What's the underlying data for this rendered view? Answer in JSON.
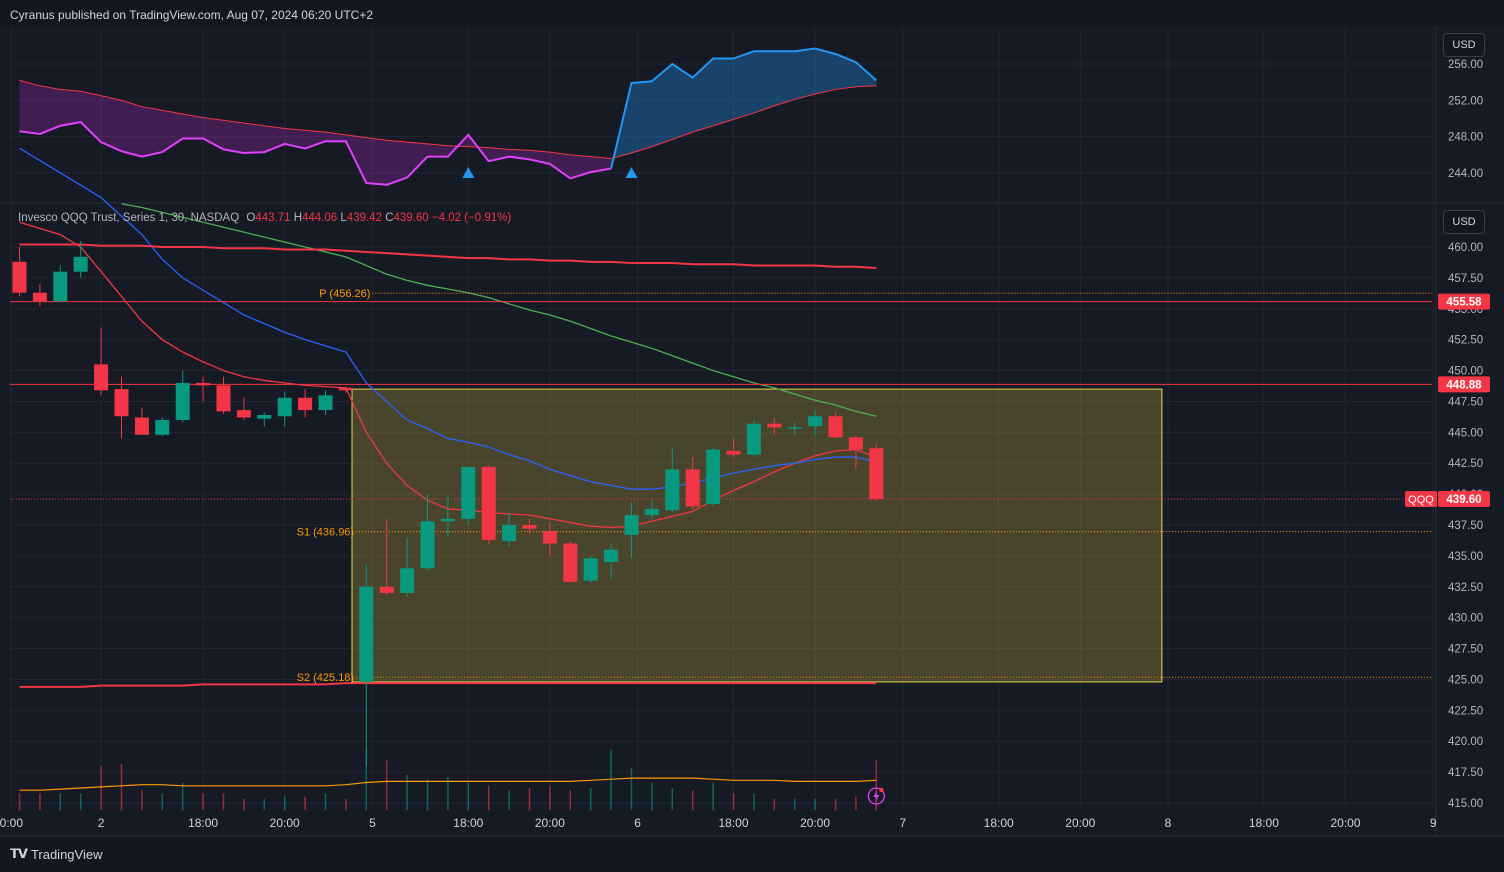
{
  "header": {
    "publisher_line": "Cyranus published on TradingView.com, Aug 07, 2024 06:20 UTC+2"
  },
  "footer": {
    "brand": "TradingView"
  },
  "colors": {
    "up": "#089981",
    "down": "#f23645",
    "bg": "#161a25",
    "grid": "#232632",
    "box_fill": "#b5a33a",
    "box_border": "#e8d94a"
  },
  "legend": {
    "symbol": "Invesco QQQ Trust, Series 1, 30, NASDAQ",
    "o_label": "O",
    "o": "443.71",
    "h_label": "H",
    "h": "444.06",
    "l_label": "L",
    "l": "439.42",
    "c_label": "C",
    "c": "439.60",
    "change": "−4.02 (−0.91%)"
  },
  "currency_buttons": [
    "USD",
    "USD"
  ],
  "chart_data": [
    {
      "type": "area",
      "panel": "upper-indicator",
      "y_ticks": [
        "256.00",
        "252.00",
        "248.00",
        "244.00"
      ],
      "ylim": [
        242.8,
        257.2
      ],
      "x": [
        0,
        1,
        2,
        3,
        4,
        5,
        6,
        7,
        8,
        9,
        10,
        11,
        12,
        13,
        14,
        15,
        16,
        17,
        18,
        19,
        20,
        21,
        22,
        23,
        24,
        25,
        26,
        27,
        28,
        29,
        30,
        31,
        32,
        33,
        34,
        35,
        36,
        37,
        38,
        39,
        40,
        41,
        42
      ],
      "series": [
        {
          "values": [
            248.6,
            248.3,
            249.2,
            249.6,
            247.4,
            246.4,
            245.8,
            246.3,
            247.8,
            247.8,
            246.6,
            246.2,
            246.3,
            247.2,
            246.7,
            247.5,
            247.5,
            242.9,
            242.7,
            243.5,
            245.8,
            245.8,
            248.2,
            245.3,
            245.8,
            245.5,
            245.0,
            243.4,
            244.1,
            244.5,
            253.9,
            254.1,
            256.0,
            254.5,
            256.6,
            256.6,
            257.4,
            257.4,
            257.4,
            257.7,
            257.1,
            256.2,
            254.2
          ]
        },
        {
          "values": [
            254.2,
            253.6,
            253.2,
            253.0,
            252.5,
            252.0,
            251.3,
            250.9,
            250.5,
            250.1,
            249.8,
            249.5,
            249.2,
            248.9,
            248.7,
            248.5,
            248.2,
            247.9,
            247.6,
            247.4,
            247.2,
            247.0,
            246.9,
            246.8,
            246.6,
            246.5,
            246.3,
            246.0,
            245.8,
            245.6,
            246.2,
            246.9,
            247.7,
            248.5,
            249.2,
            249.9,
            250.6,
            251.4,
            252.1,
            252.7,
            253.2,
            253.5,
            253.6
          ]
        }
      ],
      "signals": [
        22,
        30
      ]
    },
    {
      "type": "candlestick",
      "panel": "main",
      "symbol": "QQQ",
      "ylim": [
        414.0,
        465.4
      ],
      "y_ticks": [
        "460.00",
        "457.50",
        "455.00",
        "452.50",
        "450.00",
        "447.50",
        "445.00",
        "442.50",
        "440.00",
        "437.50",
        "435.00",
        "432.50",
        "430.00",
        "427.50",
        "425.00",
        "422.50",
        "420.00",
        "417.50",
        "415.00"
      ],
      "x_ticks": [
        {
          "label": "0:00",
          "i": -0.4
        },
        {
          "label": "2",
          "i": 4
        },
        {
          "label": "18:00",
          "i": 9
        },
        {
          "label": "20:00",
          "i": 13
        },
        {
          "label": "5",
          "i": 17.3
        },
        {
          "label": "18:00",
          "i": 22
        },
        {
          "label": "20:00",
          "i": 26
        },
        {
          "label": "6",
          "i": 30.3
        },
        {
          "label": "18:00",
          "i": 35
        },
        {
          "label": "20:00",
          "i": 39
        },
        {
          "label": "7",
          "i": 43.3
        },
        {
          "label": "18:00",
          "i": 48
        },
        {
          "label": "20:00",
          "i": 52
        },
        {
          "label": "8",
          "i": 56.3
        },
        {
          "label": "18:00",
          "i": 61
        },
        {
          "label": "20:00",
          "i": 65
        },
        {
          "label": "9",
          "i": 69.3
        }
      ],
      "candles": [
        {
          "o": 458.8,
          "h": 460.0,
          "l": 456.0,
          "c": 456.3
        },
        {
          "o": 456.3,
          "h": 457.0,
          "l": 455.2,
          "c": 455.6
        },
        {
          "o": 455.6,
          "h": 458.5,
          "l": 455.5,
          "c": 458.0
        },
        {
          "o": 458.0,
          "h": 460.5,
          "l": 457.5,
          "c": 459.2
        },
        {
          "o": 450.5,
          "h": 453.5,
          "l": 448.0,
          "c": 448.4
        },
        {
          "o": 448.5,
          "h": 449.5,
          "l": 444.5,
          "c": 446.3
        },
        {
          "o": 446.2,
          "h": 447.0,
          "l": 444.8,
          "c": 444.8
        },
        {
          "o": 444.8,
          "h": 446.2,
          "l": 444.7,
          "c": 446.0
        },
        {
          "o": 446.0,
          "h": 450.0,
          "l": 445.8,
          "c": 449.0
        },
        {
          "o": 449.0,
          "h": 449.5,
          "l": 447.5,
          "c": 448.8
        },
        {
          "o": 448.8,
          "h": 449.5,
          "l": 446.5,
          "c": 446.7
        },
        {
          "o": 446.8,
          "h": 447.8,
          "l": 446.0,
          "c": 446.2
        },
        {
          "o": 446.1,
          "h": 446.6,
          "l": 445.5,
          "c": 446.4
        },
        {
          "o": 446.3,
          "h": 448.3,
          "l": 445.5,
          "c": 447.8
        },
        {
          "o": 447.8,
          "h": 448.5,
          "l": 446.2,
          "c": 446.8
        },
        {
          "o": 446.8,
          "h": 448.4,
          "l": 446.4,
          "c": 448.0
        },
        {
          "o": 448.6,
          "h": 448.7,
          "l": 448.2,
          "c": 448.4
        },
        {
          "o": 424.8,
          "h": 434.3,
          "l": 418.0,
          "c": 432.5
        },
        {
          "o": 432.5,
          "h": 438.0,
          "l": 431.8,
          "c": 432.0
        },
        {
          "o": 432.0,
          "h": 436.5,
          "l": 431.7,
          "c": 434.0
        },
        {
          "o": 434.0,
          "h": 440.0,
          "l": 433.8,
          "c": 437.8
        },
        {
          "o": 437.8,
          "h": 439.8,
          "l": 436.5,
          "c": 438.0
        },
        {
          "o": 438.0,
          "h": 442.2,
          "l": 437.5,
          "c": 442.2
        },
        {
          "o": 442.2,
          "h": 442.3,
          "l": 436.0,
          "c": 436.3
        },
        {
          "o": 436.2,
          "h": 438.5,
          "l": 435.8,
          "c": 437.5
        },
        {
          "o": 437.5,
          "h": 438.0,
          "l": 436.8,
          "c": 437.2
        },
        {
          "o": 437.0,
          "h": 437.7,
          "l": 435.0,
          "c": 436.0
        },
        {
          "o": 436.0,
          "h": 436.2,
          "l": 432.8,
          "c": 432.9
        },
        {
          "o": 433.0,
          "h": 435.0,
          "l": 432.8,
          "c": 434.8
        },
        {
          "o": 434.5,
          "h": 436.0,
          "l": 433.2,
          "c": 435.5
        },
        {
          "o": 436.7,
          "h": 439.3,
          "l": 434.8,
          "c": 438.3
        },
        {
          "o": 438.3,
          "h": 439.5,
          "l": 438.0,
          "c": 438.8
        },
        {
          "o": 438.7,
          "h": 443.8,
          "l": 438.5,
          "c": 442.0
        },
        {
          "o": 442.0,
          "h": 443.0,
          "l": 438.8,
          "c": 439.0
        },
        {
          "o": 439.2,
          "h": 443.8,
          "l": 439.0,
          "c": 443.6
        },
        {
          "o": 443.5,
          "h": 444.5,
          "l": 443.0,
          "c": 443.2
        },
        {
          "o": 443.2,
          "h": 446.0,
          "l": 443.0,
          "c": 445.7
        },
        {
          "o": 445.7,
          "h": 446.2,
          "l": 444.8,
          "c": 445.4
        },
        {
          "o": 445.4,
          "h": 445.8,
          "l": 444.8,
          "c": 445.4
        },
        {
          "o": 445.5,
          "h": 446.8,
          "l": 444.8,
          "c": 446.3
        },
        {
          "o": 446.3,
          "h": 446.6,
          "l": 444.5,
          "c": 444.6
        },
        {
          "o": 444.6,
          "h": 444.7,
          "l": 442.0,
          "c": 443.6
        },
        {
          "o": 443.71,
          "h": 444.06,
          "l": 439.42,
          "c": 439.6
        }
      ],
      "volume": [
        0.15,
        0.15,
        0.15,
        0.15,
        0.4,
        0.42,
        0.18,
        0.15,
        0.25,
        0.15,
        0.15,
        0.1,
        0.1,
        0.12,
        0.12,
        0.15,
        0.1,
        0.55,
        0.45,
        0.32,
        0.28,
        0.3,
        0.25,
        0.22,
        0.18,
        0.2,
        0.22,
        0.18,
        0.2,
        0.55,
        0.38,
        0.25,
        0.2,
        0.18,
        0.25,
        0.15,
        0.15,
        0.1,
        0.1,
        0.1,
        0.1,
        0.12,
        0.45
      ],
      "volume_ma": [
        0.18,
        0.18,
        0.19,
        0.2,
        0.21,
        0.22,
        0.23,
        0.23,
        0.22,
        0.22,
        0.22,
        0.22,
        0.22,
        0.22,
        0.22,
        0.22,
        0.23,
        0.25,
        0.26,
        0.26,
        0.26,
        0.26,
        0.26,
        0.26,
        0.26,
        0.26,
        0.26,
        0.26,
        0.27,
        0.28,
        0.29,
        0.29,
        0.29,
        0.29,
        0.28,
        0.27,
        0.27,
        0.27,
        0.26,
        0.26,
        0.26,
        0.26,
        0.27
      ],
      "box": {
        "i_from": 16.3,
        "i_to": 56,
        "top": 448.5,
        "bottom": 424.8
      },
      "pivots": [
        {
          "label": "P (456.26)",
          "value": 456.26,
          "i_from": 17.3,
          "i_to": 70
        },
        {
          "label": "S1 (436.96)",
          "value": 436.96,
          "i_from": 16.5,
          "i_to": 70
        },
        {
          "label": "S2 (425.18)",
          "value": 425.18,
          "i_from": 16.5,
          "i_to": 70
        }
      ],
      "hlines": [
        {
          "value": 455.58,
          "label": "455.58"
        },
        {
          "value": 448.88,
          "label": "448.88"
        }
      ],
      "last_price": {
        "value": 439.6,
        "label": "439.60",
        "symbol": "QQQ"
      },
      "mas": [
        {
          "color": "#f23645",
          "values": [
            462.0,
            461.5,
            461.0,
            460.0,
            458.0,
            456.0,
            454.0,
            452.5,
            451.5,
            450.7,
            450.0,
            449.5,
            449.2,
            449.0,
            448.8,
            448.7,
            448.6,
            445.0,
            442.5,
            440.7,
            439.5,
            438.8,
            438.7,
            438.5,
            438.4,
            438.3,
            438.0,
            437.7,
            437.4,
            437.3,
            437.4,
            437.8,
            438.2,
            438.6,
            439.5,
            440.3,
            441.0,
            441.8,
            442.5,
            443.1,
            443.5,
            443.6,
            443.0
          ]
        },
        {
          "color": "#2962ff",
          "values": [
            468.0,
            467.0,
            466.0,
            465.0,
            464.0,
            462.5,
            461.0,
            459.0,
            457.5,
            456.5,
            455.5,
            454.5,
            453.8,
            453.1,
            452.5,
            452.0,
            451.5,
            449.0,
            447.5,
            446.0,
            445.3,
            444.5,
            444.2,
            443.8,
            443.2,
            442.7,
            442.0,
            441.5,
            441.0,
            440.7,
            440.4,
            440.4,
            440.6,
            440.9,
            441.3,
            441.7,
            442.0,
            442.3,
            442.5,
            442.8,
            443.0,
            443.0,
            442.6
          ]
        },
        {
          "color": "#4caf50",
          "values": [
            null,
            null,
            null,
            null,
            null,
            463.5,
            463.2,
            462.8,
            462.4,
            462.0,
            461.6,
            461.2,
            460.8,
            460.4,
            460.0,
            459.6,
            459.2,
            458.5,
            457.8,
            457.3,
            456.9,
            456.6,
            456.3,
            455.9,
            455.4,
            454.9,
            454.5,
            454.0,
            453.4,
            452.8,
            452.3,
            451.8,
            451.2,
            450.6,
            450.0,
            449.5,
            449.0,
            448.6,
            448.1,
            447.6,
            447.2,
            446.7,
            446.3
          ]
        },
        {
          "color": "#f23645",
          "values": [
            460.2,
            460.2,
            460.2,
            460.2,
            460.1,
            460.1,
            460.1,
            460.0,
            460.0,
            460.0,
            459.9,
            459.9,
            459.9,
            459.8,
            459.8,
            459.8,
            459.7,
            459.6,
            459.5,
            459.4,
            459.3,
            459.2,
            459.1,
            459.1,
            459.0,
            459.0,
            458.9,
            458.9,
            458.8,
            458.8,
            458.7,
            458.7,
            458.7,
            458.6,
            458.6,
            458.6,
            458.5,
            458.5,
            458.5,
            458.5,
            458.4,
            458.4,
            458.3
          ]
        },
        {
          "color": "#f23645",
          "values": [
            424.4,
            424.4,
            424.4,
            424.4,
            424.5,
            424.5,
            424.5,
            424.5,
            424.5,
            424.6,
            424.6,
            424.6,
            424.6,
            424.6,
            424.6,
            424.6,
            424.7,
            424.7,
            424.7,
            424.7,
            424.7,
            424.7,
            424.7,
            424.7,
            424.7,
            424.7,
            424.7,
            424.7,
            424.7,
            424.7,
            424.7,
            424.7,
            424.7,
            424.7,
            424.7,
            424.7,
            424.7,
            424.7,
            424.7,
            424.7,
            424.7,
            424.7,
            424.7
          ]
        }
      ]
    }
  ]
}
